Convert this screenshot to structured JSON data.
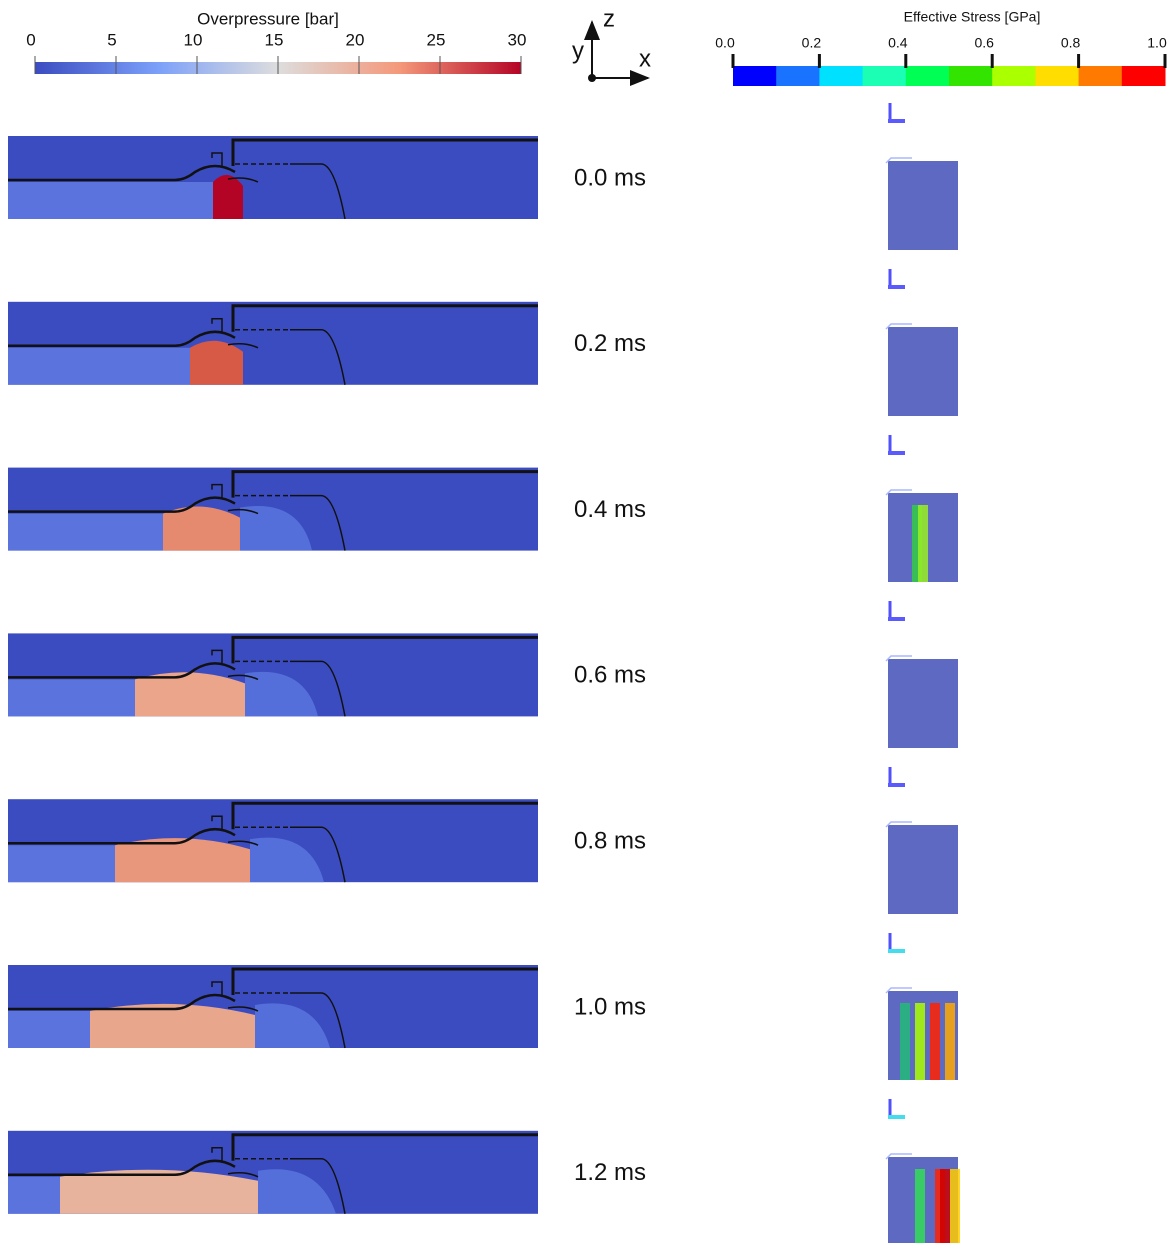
{
  "overpressure_colorbar": {
    "title": "Overpressure [bar]",
    "ticks": [
      "0",
      "5",
      "10",
      "15",
      "20",
      "25",
      "30"
    ]
  },
  "axes_triad": {
    "z": "z",
    "y": "y",
    "x": "x"
  },
  "stress_colorbar": {
    "title": "Effective Stress [GPa]",
    "ticks": [
      "0.0",
      "0.2",
      "0.4",
      "0.6",
      "0.8",
      "1.0"
    ]
  },
  "frames": [
    {
      "time": "0.0 ms"
    },
    {
      "time": "0.2 ms"
    },
    {
      "time": "0.4 ms"
    },
    {
      "time": "0.6 ms"
    },
    {
      "time": "0.8 ms"
    },
    {
      "time": "1.0 ms"
    },
    {
      "time": "1.2 ms"
    }
  ]
}
